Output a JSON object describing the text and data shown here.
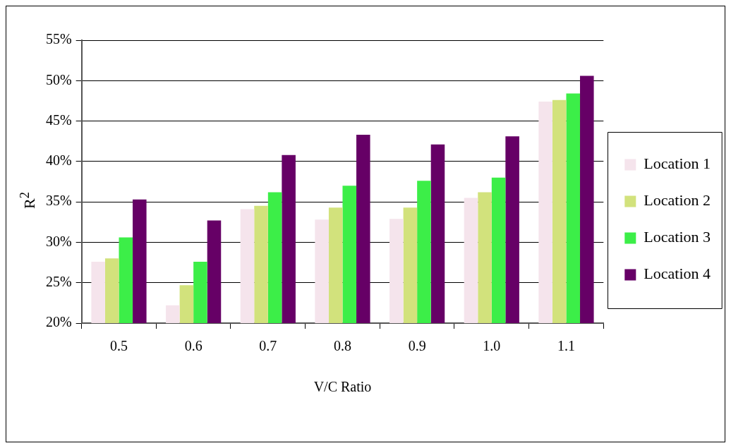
{
  "chart_data": {
    "type": "bar",
    "xlabel": "V/C Ratio",
    "ylabel": "R$^{2}$",
    "categories": [
      "0.5",
      "0.6",
      "0.7",
      "0.8",
      "0.9",
      "1.0",
      "1.1"
    ],
    "series": [
      {
        "name": "Location 1",
        "color": "#f5e4ec",
        "values": [
          27.6,
          22.2,
          34.1,
          32.8,
          32.9,
          35.5,
          47.4
        ]
      },
      {
        "name": "Location 2",
        "color": "#d2e27c",
        "values": [
          28.0,
          24.7,
          34.5,
          34.3,
          34.3,
          36.2,
          47.6
        ]
      },
      {
        "name": "Location 3",
        "color": "#3cee48",
        "values": [
          30.6,
          27.6,
          36.2,
          37.0,
          37.6,
          38.0,
          48.4
        ]
      },
      {
        "name": "Location 4",
        "color": "#660066",
        "values": [
          35.3,
          32.7,
          40.8,
          43.3,
          42.1,
          43.1,
          50.6
        ]
      }
    ],
    "ylim": [
      20,
      55
    ],
    "yticks": [
      {
        "value": 20,
        "label": "20%"
      },
      {
        "value": 25,
        "label": "25%"
      },
      {
        "value": 30,
        "label": "30%"
      },
      {
        "value": 35,
        "label": "35%"
      },
      {
        "value": 40,
        "label": "40%"
      },
      {
        "value": 45,
        "label": "45%"
      },
      {
        "value": 50,
        "label": "50%"
      },
      {
        "value": 55,
        "label": "55%"
      }
    ],
    "grid": "y",
    "legend": "right"
  }
}
